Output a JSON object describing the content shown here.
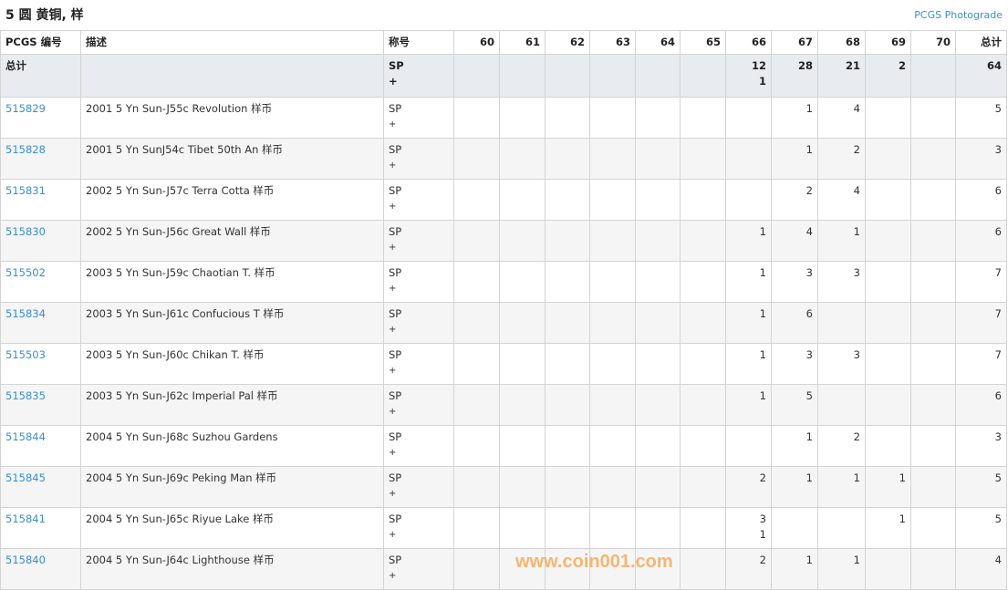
{
  "title": "5 圆 黄铜, 样",
  "photograde_link": "PCGS Photograde",
  "headers": [
    "PCGS 编号",
    "描述",
    "称号",
    "60",
    "61",
    "62",
    "63",
    "64",
    "65",
    "66",
    "67",
    "68",
    "69",
    "70",
    "总计"
  ],
  "total_row": {
    "label": "总计",
    "desc": "",
    "designation": "SP",
    "designation_suffix": "+",
    "grades": [
      "",
      "",
      "",
      "",
      "",
      "",
      "12\n1",
      "28",
      "21",
      "2",
      ""
    ],
    "total": "64"
  },
  "rows": [
    {
      "id": "515829",
      "desc": "2001 5 Yn Sun-J55c Revolution 样币",
      "designation": "SP",
      "suffix": "+",
      "grades": [
        "",
        "",
        "",
        "",
        "",
        "",
        "",
        "1",
        "4",
        "",
        ""
      ],
      "total": "5"
    },
    {
      "id": "515828",
      "desc": "2001 5 Yn SunJ54c Tibet 50th An 样币",
      "designation": "SP",
      "suffix": "+",
      "grades": [
        "",
        "",
        "",
        "",
        "",
        "",
        "",
        "1",
        "2",
        "",
        ""
      ],
      "total": "3"
    },
    {
      "id": "515831",
      "desc": "2002 5 Yn Sun-J57c Terra Cotta 样币",
      "designation": "SP",
      "suffix": "+",
      "grades": [
        "",
        "",
        "",
        "",
        "",
        "",
        "",
        "2",
        "4",
        "",
        ""
      ],
      "total": "6"
    },
    {
      "id": "515830",
      "desc": "2002 5 Yn Sun-J56c Great Wall 样币",
      "designation": "SP",
      "suffix": "+",
      "grades": [
        "",
        "",
        "",
        "",
        "",
        "",
        "1",
        "4",
        "1",
        "",
        ""
      ],
      "total": "6"
    },
    {
      "id": "515502",
      "desc": "2003 5 Yn Sun-J59c Chaotian T. 样币",
      "designation": "SP",
      "suffix": "+",
      "grades": [
        "",
        "",
        "",
        "",
        "",
        "",
        "1",
        "3",
        "3",
        "",
        ""
      ],
      "total": "7"
    },
    {
      "id": "515834",
      "desc": "2003 5 Yn Sun-J61c Confucious T 样币",
      "designation": "SP",
      "suffix": "+",
      "grades": [
        "",
        "",
        "",
        "",
        "",
        "",
        "1",
        "6",
        "",
        "",
        ""
      ],
      "total": "7"
    },
    {
      "id": "515503",
      "desc": "2003 5 Yn Sun-J60c Chikan T. 样币",
      "designation": "SP",
      "suffix": "+",
      "grades": [
        "",
        "",
        "",
        "",
        "",
        "",
        "1",
        "3",
        "3",
        "",
        ""
      ],
      "total": "7"
    },
    {
      "id": "515835",
      "desc": "2003 5 Yn Sun-J62c Imperial Pal 样币",
      "designation": "SP",
      "suffix": "+",
      "grades": [
        "",
        "",
        "",
        "",
        "",
        "",
        "1",
        "5",
        "",
        "",
        ""
      ],
      "total": "6"
    },
    {
      "id": "515844",
      "desc": "2004 5 Yn Sun-J68c Suzhou Gardens",
      "designation": "SP",
      "suffix": "+",
      "grades": [
        "",
        "",
        "",
        "",
        "",
        "",
        "",
        "1",
        "2",
        "",
        ""
      ],
      "total": "3"
    },
    {
      "id": "515845",
      "desc": "2004 5 Yn Sun-J69c Peking Man 样币",
      "designation": "SP",
      "suffix": "+",
      "grades": [
        "",
        "",
        "",
        "",
        "",
        "",
        "2",
        "1",
        "1",
        "1",
        ""
      ],
      "total": "5"
    },
    {
      "id": "515841",
      "desc": "2004 5 Yn Sun-J65c Riyue Lake 样币",
      "designation": "SP",
      "suffix": "+",
      "grades": [
        "",
        "",
        "",
        "",
        "",
        "",
        "3\n1",
        "",
        "",
        "1",
        ""
      ],
      "total": "5"
    },
    {
      "id": "515840",
      "desc": "2004 5 Yn Sun-J64c Lighthouse 样币",
      "designation": "SP",
      "suffix": "+",
      "grades": [
        "",
        "",
        "",
        "",
        "",
        "",
        "2",
        "1",
        "1",
        "",
        ""
      ],
      "total": "4"
    }
  ],
  "watermark": "www.coin001.com"
}
